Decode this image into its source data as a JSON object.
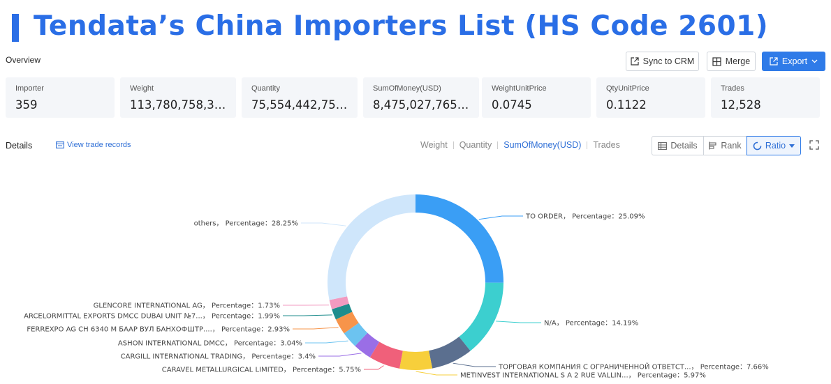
{
  "header": {
    "title": "Tendata’s China Importers List (HS Code 2601)",
    "overview_label": "Overview",
    "sync_label": "Sync to CRM",
    "merge_label": "Merge",
    "export_label": "Export"
  },
  "stats": [
    {
      "label": "Importer",
      "value": "359"
    },
    {
      "label": "Weight",
      "value": "113,780,758,32..."
    },
    {
      "label": "Quantity",
      "value": "75,554,442,752...."
    },
    {
      "label": "SumOfMoney(USD)",
      "value": "8,475,027,765.45"
    },
    {
      "label": "WeightUnitPrice",
      "value": "0.0745"
    },
    {
      "label": "QtyUnitPrice",
      "value": "0.1122"
    },
    {
      "label": "Trades",
      "value": "12,528"
    }
  ],
  "details": {
    "label": "Details",
    "view_records": "View trade records",
    "metric_tabs": [
      "Weight",
      "Quantity",
      "SumOfMoney(USD)",
      "Trades"
    ],
    "active_metric": "SumOfMoney(USD)",
    "view_modes": [
      "Details",
      "Rank",
      "Ratio"
    ],
    "active_view": "Ratio"
  },
  "chart_data": {
    "type": "pie",
    "donut": true,
    "series": [
      {
        "name": "TO ORDER",
        "label": "TO ORDER， Percentage：25.09%",
        "value": 25.09,
        "color": "#3a9ef5"
      },
      {
        "name": "N/A",
        "label": "N/A， Percentage：14.19%",
        "value": 14.19,
        "color": "#3ccfcf"
      },
      {
        "name": "ТОРГОВАЯ КОМПАНИЯ С ОГРАНИЧЕННОЙ ОТВЕТСТ...",
        "label": "ТОРГОВАЯ КОМПАНИЯ С ОГРАНИЧЕННОЙ ОТВЕТСТ...， Percentage：7.66%",
        "value": 7.66,
        "color": "#5b6f8f"
      },
      {
        "name": "METINVEST INTERNATIONAL S A 2 RUE VALLIN...",
        "label": "METINVEST INTERNATIONAL S A 2 RUE VALLIN...， Percentage：5.97%",
        "value": 5.97,
        "color": "#f7cf3b"
      },
      {
        "name": "CARAVEL METALLURGICAL LIMITED",
        "label": "CARAVEL METALLURGICAL LIMITED， Percentage：5.75%",
        "value": 5.75,
        "color": "#f0607a"
      },
      {
        "name": "CARGILL INTERNATIONAL TRADING",
        "label": "CARGILL INTERNATIONAL TRADING， Percentage：3.4%",
        "value": 3.4,
        "color": "#9a6ee6"
      },
      {
        "name": "ASHON INTERNATIONAL DMCC",
        "label": "ASHON INTERNATIONAL DMCC， Percentage：3.04%",
        "value": 3.04,
        "color": "#6cc3f0"
      },
      {
        "name": "FERREXPO AG CH 6340 M БААР ВУЛ БАНХОФШТР....",
        "label": "FERREXPO AG CH 6340 M БААР ВУЛ БАНХОФШТР....， Percentage：2.93%",
        "value": 2.93,
        "color": "#f7944a"
      },
      {
        "name": "ARCELORMITTAL EXPORTS DMCC DUBAI UNIT №7...",
        "label": "ARCELORMITTAL EXPORTS DMCC DUBAI UNIT №7...， Percentage：1.99%",
        "value": 1.99,
        "color": "#1f8d8d"
      },
      {
        "name": "GLENCORE INTERNATIONAL AG",
        "label": "GLENCORE INTERNATIONAL AG， Percentage：1.73%",
        "value": 1.73,
        "color": "#f29ac0"
      },
      {
        "name": "others",
        "label": "others， Percentage：28.25%",
        "value": 28.25,
        "color": "#cfe6fb"
      }
    ]
  }
}
